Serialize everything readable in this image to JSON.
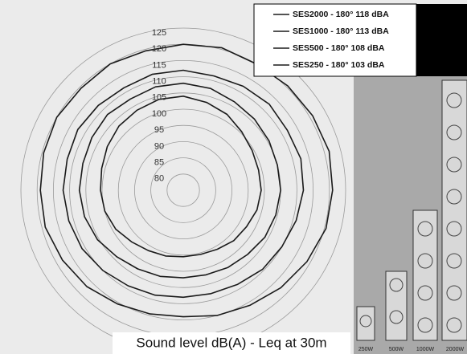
{
  "chart_data": {
    "type": "polar",
    "caption": "Sound level dB(A) - Leq at 30m",
    "theta": [
      0,
      15,
      30,
      45,
      60,
      75,
      90,
      105,
      120,
      135,
      150,
      165,
      180,
      195,
      210,
      225,
      240,
      255,
      270,
      285,
      300,
      315,
      330,
      345
    ],
    "rlim": [
      75,
      125
    ],
    "rticks": [
      80,
      85,
      90,
      95,
      100,
      105,
      110,
      115,
      120,
      125
    ],
    "grid": true,
    "legend": "upper right",
    "series": [
      {
        "name": "SES250 - 180° 103 dBA",
        "color": "#1a1a1a",
        "values": [
          104,
          103,
          102,
          100.5,
          99.5,
          99,
          99,
          98.5,
          97.5,
          97,
          96,
          95.5,
          95.5,
          96,
          96.5,
          97.5,
          99,
          100,
          100.5,
          101,
          102,
          103,
          103.5,
          104
        ]
      },
      {
        "name": "SES500 - 180° 108 dBA",
        "color": "#1a1a1a",
        "values": [
          108,
          107.5,
          106.5,
          106,
          105.5,
          105,
          105,
          104.5,
          104,
          103,
          102.5,
          102,
          102,
          102.5,
          103,
          104,
          105.5,
          106.5,
          107,
          107,
          107.5,
          108,
          107.5,
          108
        ]
      },
      {
        "name": "SES1000 - 180° 113 dBA",
        "color": "#1a1a1a",
        "values": [
          112,
          111.5,
          112,
          112.5,
          112,
          112.5,
          112,
          111,
          110,
          109.5,
          108.5,
          108,
          108,
          108.5,
          109,
          110,
          111,
          111.5,
          112,
          112,
          112.5,
          112,
          111.5,
          112
        ]
      },
      {
        "name": "SES2000 - 180° 118 dBA",
        "color": "#1a1a1a",
        "values": [
          120,
          120.5,
          120,
          120.5,
          121,
          121.5,
          121,
          120.5,
          119,
          117.5,
          116,
          115,
          114,
          114.5,
          115.5,
          117,
          118,
          119,
          119,
          119.5,
          120,
          119.5,
          120,
          119.5
        ]
      }
    ]
  },
  "image": {
    "labels": [
      "250W",
      "500W",
      "1000W",
      "2000W"
    ]
  }
}
